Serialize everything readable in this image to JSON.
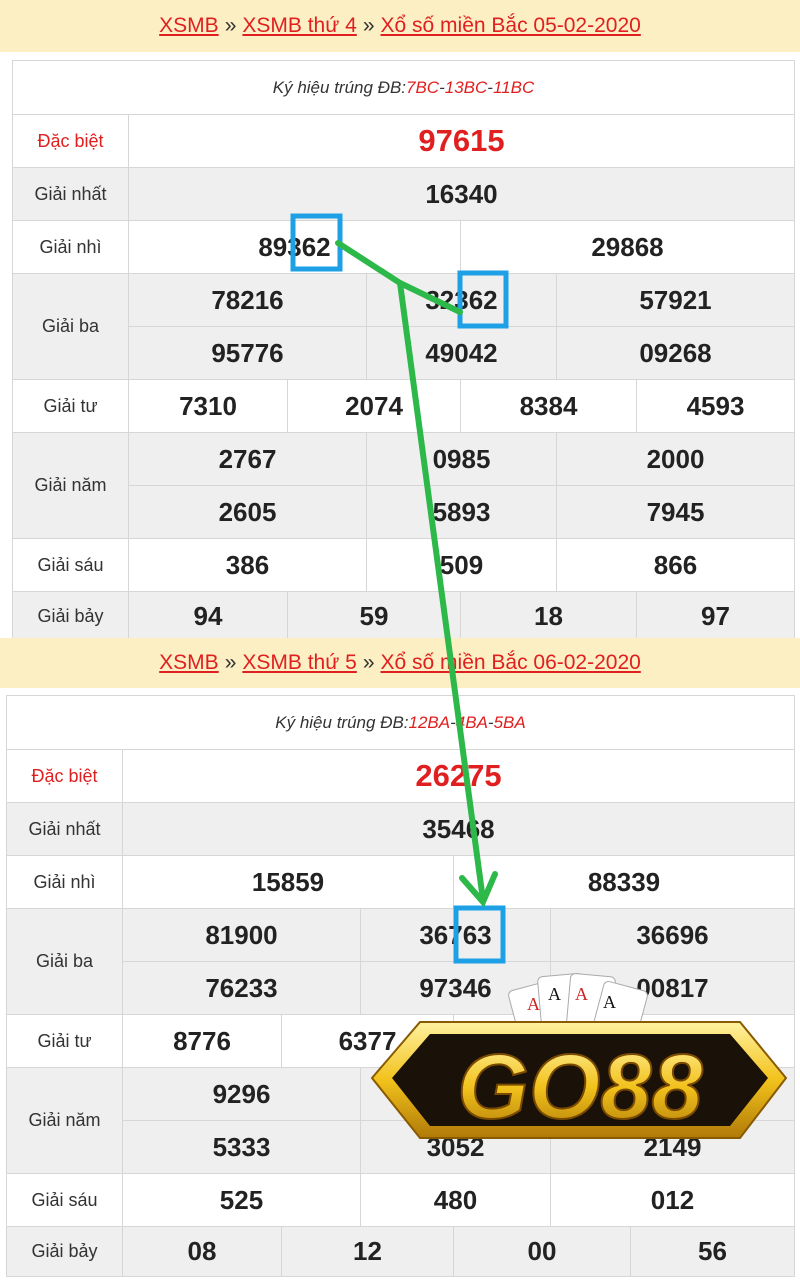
{
  "draws": [
    {
      "crumbs": [
        "XSMB",
        "XSMB thứ 4",
        "Xổ số miền Bắc 05-02-2020"
      ],
      "sep": "»",
      "symbol_label": "Ký hiệu trúng ĐB: ",
      "symbols": [
        "7BC",
        "13BC",
        "11BC"
      ],
      "prizes": [
        {
          "label": "Đặc biệt",
          "rows": [
            [
              "97615"
            ]
          ]
        },
        {
          "label": "Giải nhất",
          "rows": [
            [
              "16340"
            ]
          ]
        },
        {
          "label": "Giải nhì",
          "rows": [
            [
              "89362",
              "29868"
            ]
          ]
        },
        {
          "label": "Giải ba",
          "rows": [
            [
              "78216",
              "32362",
              "57921"
            ],
            [
              "95776",
              "49042",
              "09268"
            ]
          ]
        },
        {
          "label": "Giải tư",
          "rows": [
            [
              "7310",
              "2074",
              "8384",
              "4593"
            ]
          ]
        },
        {
          "label": "Giải năm",
          "rows": [
            [
              "2767",
              "0985",
              "2000"
            ],
            [
              "2605",
              "5893",
              "7945"
            ]
          ]
        },
        {
          "label": "Giải sáu",
          "rows": [
            [
              "386",
              "509",
              "866"
            ]
          ]
        },
        {
          "label": "Giải bảy",
          "rows": [
            [
              "94",
              "59",
              "18",
              "97"
            ]
          ]
        }
      ]
    },
    {
      "crumbs": [
        "XSMB",
        "XSMB thứ 5",
        "Xổ số miền Bắc 06-02-2020"
      ],
      "sep": "»",
      "symbol_label": "Ký hiệu trúng ĐB: ",
      "symbols": [
        "12BA",
        "4BA",
        "5BA"
      ],
      "prizes": [
        {
          "label": "Đặc biệt",
          "rows": [
            [
              "26275"
            ]
          ]
        },
        {
          "label": "Giải nhất",
          "rows": [
            [
              "35468"
            ]
          ]
        },
        {
          "label": "Giải nhì",
          "rows": [
            [
              "15859",
              "88339"
            ]
          ]
        },
        {
          "label": "Giải ba",
          "rows": [
            [
              "81900",
              "36763",
              "36696"
            ],
            [
              "76233",
              "97346",
              "00817"
            ]
          ]
        },
        {
          "label": "Giải tư",
          "rows": [
            [
              "8776",
              "6377",
              "",
              ""
            ]
          ]
        },
        {
          "label": "Giải năm",
          "rows": [
            [
              "9296",
              "",
              ""
            ],
            [
              "5333",
              "3052",
              "2149"
            ]
          ]
        },
        {
          "label": "Giải sáu",
          "rows": [
            [
              "525",
              "480",
              "012"
            ]
          ]
        },
        {
          "label": "Giải bảy",
          "rows": [
            [
              "08",
              "12",
              "00",
              "56"
            ]
          ]
        }
      ]
    }
  ],
  "logo": {
    "text": "GO88"
  },
  "colors": {
    "accent": "#e02020",
    "header_bg": "#fcefc3",
    "highlight_box": "#1ea0e6",
    "arrow": "#2db84a"
  }
}
